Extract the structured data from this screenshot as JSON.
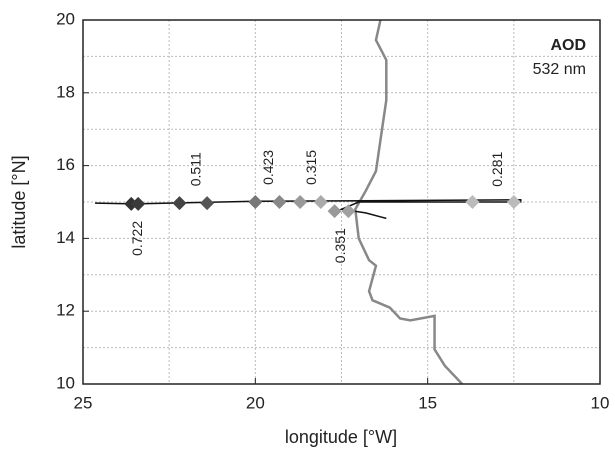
{
  "chart_data": {
    "type": "scatter",
    "x_label": "longitude  [°W]",
    "y_label": "latitude  [°N]",
    "legend_title": "AOD",
    "legend_subtitle": "532 nm",
    "xlim": [
      25,
      10
    ],
    "ylim": [
      10,
      20
    ],
    "xticks": [
      25,
      20,
      15,
      10
    ],
    "yticks": [
      10,
      12,
      14,
      16,
      18,
      20
    ],
    "minor_xticks": [
      22.5,
      17.5,
      12.5
    ],
    "minor_yticks": [
      11,
      13,
      15,
      17,
      19
    ],
    "grid": true,
    "coastline": {
      "color": "#888888",
      "x": [
        16.37,
        16.5,
        16.2,
        16.2,
        16.37,
        16.5,
        16.8,
        17.1,
        17.0,
        16.7,
        16.5,
        16.7,
        16.6,
        16.1,
        15.8,
        15.5,
        14.8,
        14.8,
        14.8,
        14.5,
        14.0
      ],
      "y": [
        20,
        19.45,
        18.9,
        17.8,
        16.7,
        15.85,
        15.3,
        14.8,
        14.0,
        13.4,
        13.25,
        12.55,
        12.3,
        12.1,
        11.8,
        11.75,
        11.87,
        11.5,
        10.95,
        10.5,
        10
      ]
    },
    "track": {
      "color": "#111111",
      "x": [
        24.65,
        23.5,
        20,
        17.5,
        12.3,
        12.3,
        17,
        17.5,
        16.8,
        16.2
      ],
      "y": [
        14.97,
        14.95,
        15.02,
        15.03,
        15.06,
        15.0,
        15.0,
        14.8,
        14.7,
        14.55
      ]
    },
    "points": {
      "x": [
        23.6,
        23.4,
        22.2,
        21.4,
        20.0,
        19.3,
        18.7,
        18.1,
        17.7,
        17.3,
        13.7,
        12.5
      ],
      "y": [
        14.95,
        14.95,
        14.97,
        14.97,
        15.0,
        15.0,
        15.0,
        15.0,
        14.75,
        14.75,
        15.0,
        15.0
      ],
      "colors": [
        "#333333",
        "#3a3a3a",
        "#444444",
        "#555555",
        "#777777",
        "#888888",
        "#999999",
        "#aaaaaa",
        "#999999",
        "#a0a0a0",
        "#bbbbbb",
        "#bbbbbb"
      ]
    },
    "annotations": [
      {
        "text": "0.722",
        "x": 23.4,
        "y": 14.0
      },
      {
        "text": "0.511",
        "x": 21.7,
        "y": 15.9
      },
      {
        "text": "0.423",
        "x": 19.6,
        "y": 15.95
      },
      {
        "text": "0.315",
        "x": 18.35,
        "y": 15.95
      },
      {
        "text": "0.351",
        "x": 17.5,
        "y": 13.8
      },
      {
        "text": "0.281",
        "x": 12.95,
        "y": 15.9
      }
    ]
  }
}
